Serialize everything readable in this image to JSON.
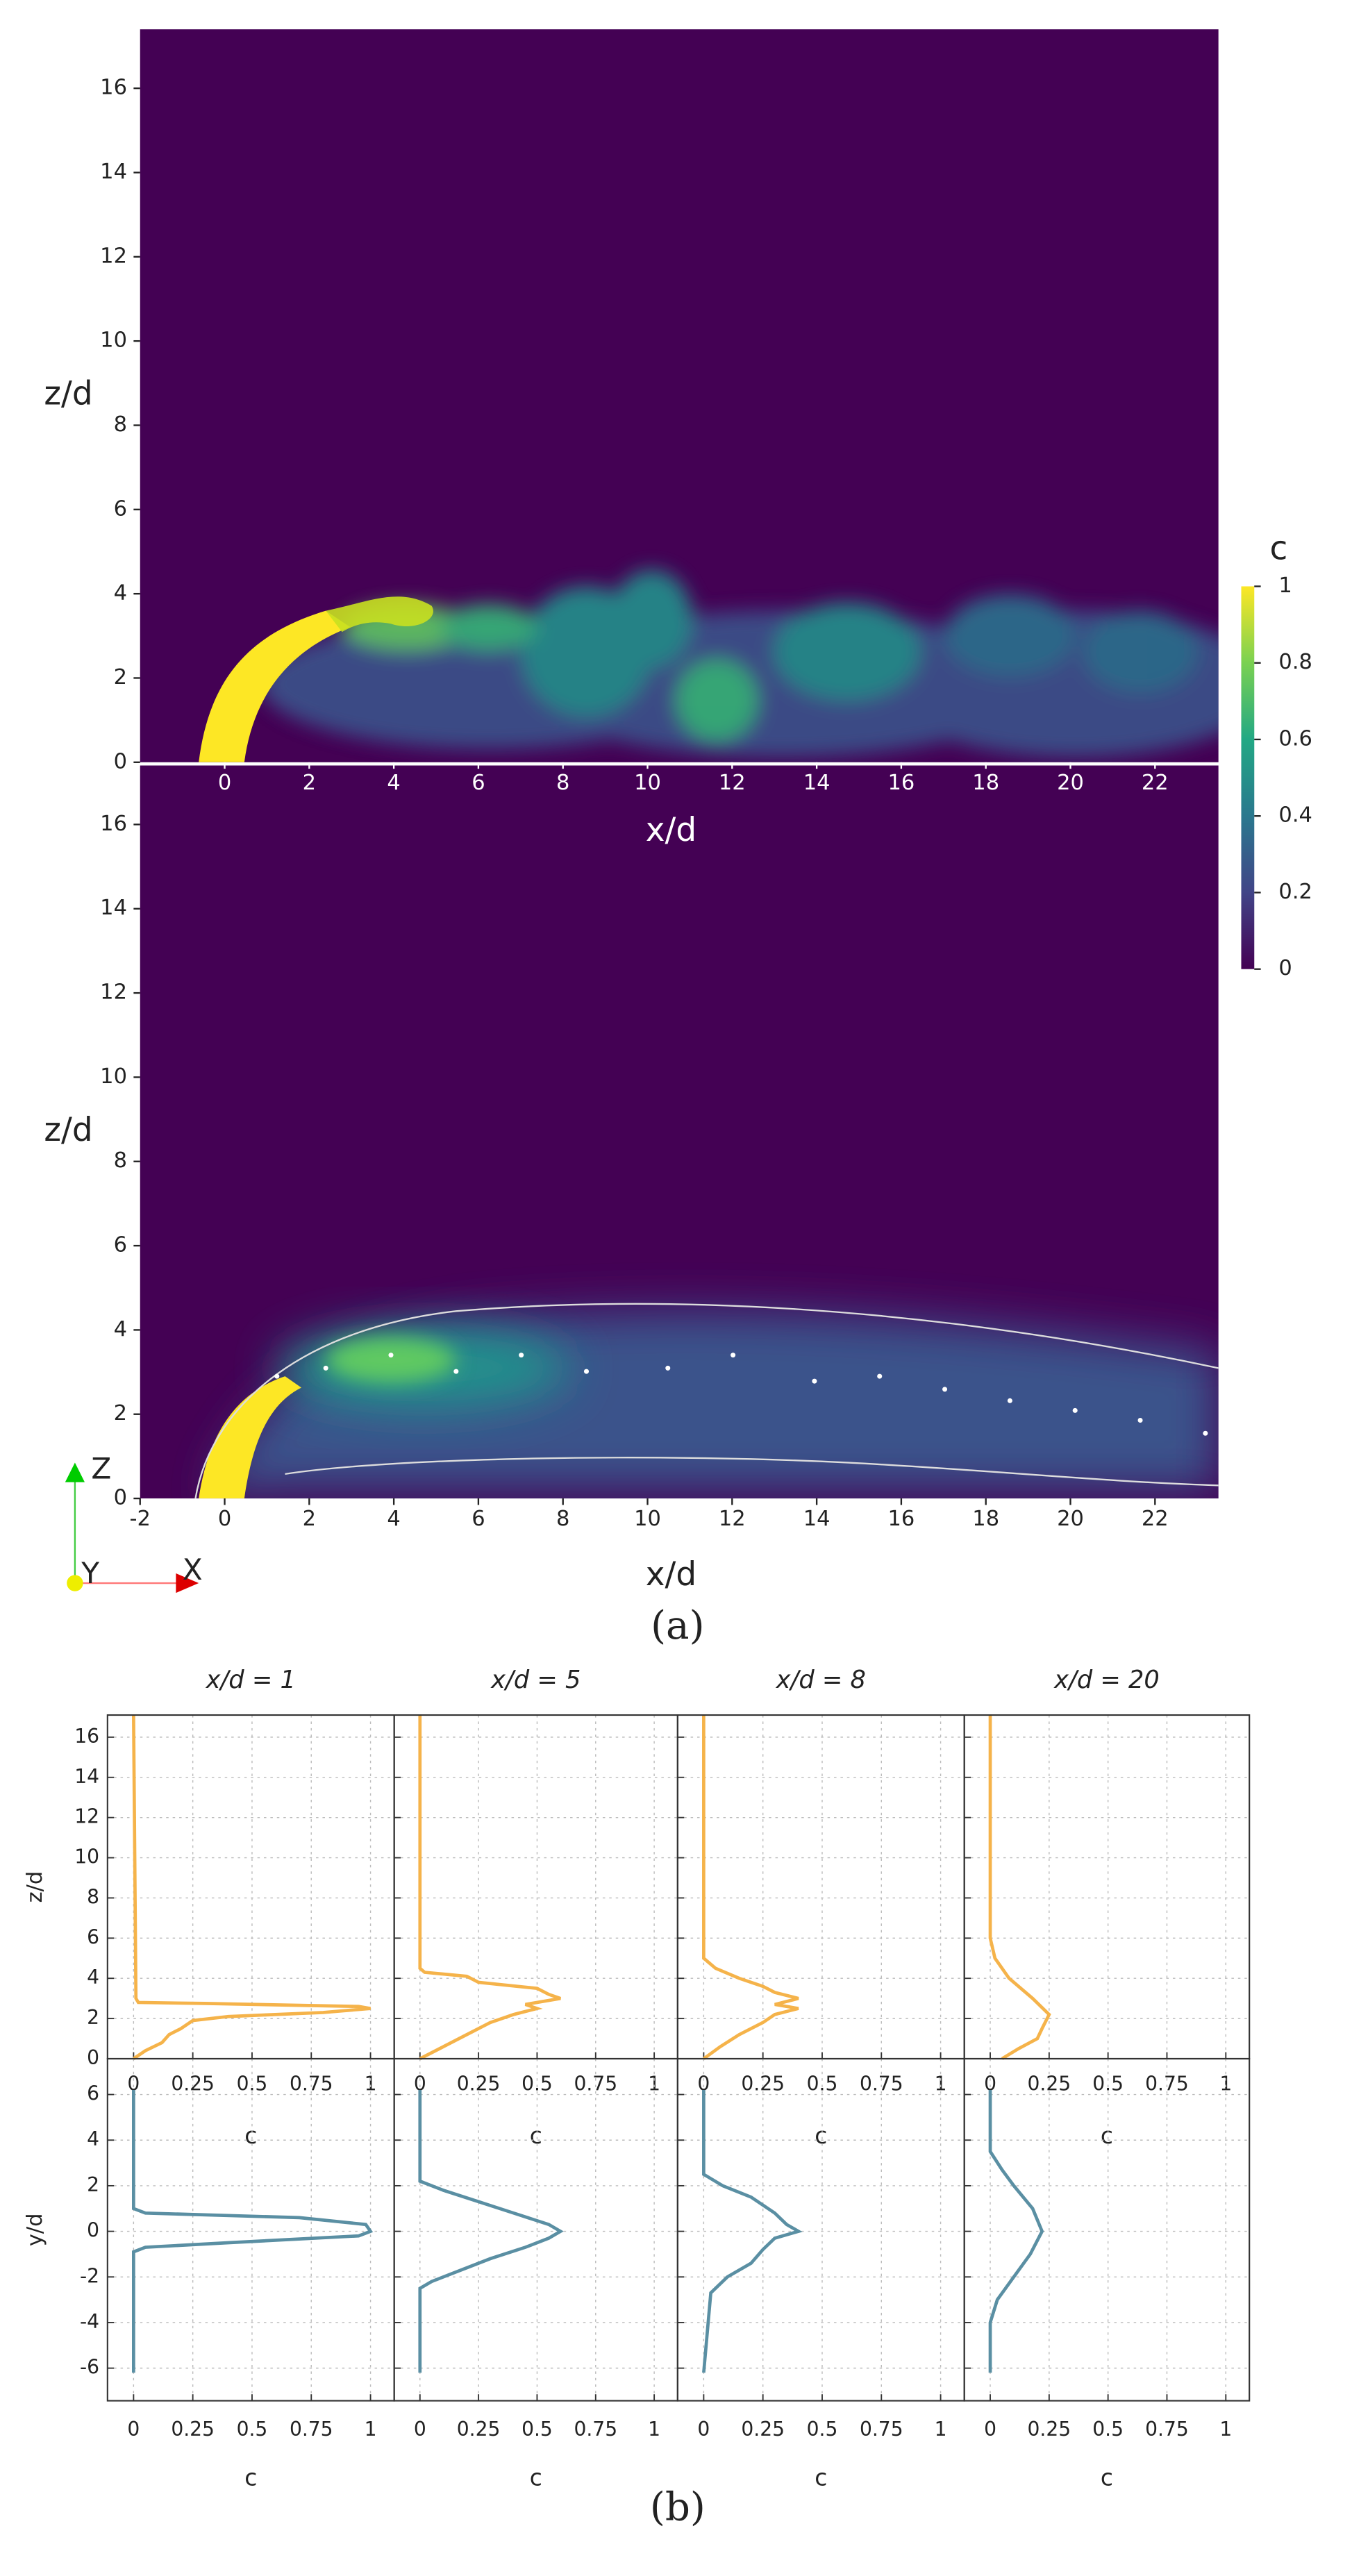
{
  "chart_data": [
    {
      "type": "contour",
      "xlabel": "x/d",
      "ylabel": "z/d",
      "xlim": [
        -2,
        23.5
      ],
      "ylim": [
        0,
        17.4
      ],
      "xticks": [
        0,
        2,
        4,
        6,
        8,
        10,
        12,
        14,
        16,
        18,
        20,
        22
      ],
      "yticks": [
        0,
        2,
        4,
        6,
        8,
        10,
        12,
        14,
        16
      ],
      "colorbar": {
        "title": "c",
        "lim": [
          0,
          1
        ],
        "ticks": [
          0,
          0.2,
          0.4,
          0.6,
          0.8,
          1
        ]
      }
    },
    {
      "type": "contour",
      "xlabel": "x/d",
      "ylabel": "z/d",
      "xlim": [
        -2,
        23.5
      ],
      "ylim": [
        0,
        17.4
      ],
      "xticks": [
        -2,
        0,
        2,
        4,
        6,
        8,
        10,
        12,
        14,
        16,
        18,
        20,
        22
      ],
      "yticks": [
        0,
        2,
        4,
        6,
        8,
        10,
        12,
        14,
        16
      ]
    },
    {
      "type": "profile",
      "title": "x/d = 1",
      "xlabel": "c",
      "ylabel": "z/d",
      "color": "#f5b34a",
      "xlim": [
        -0.11,
        1.1
      ],
      "ylim": [
        0,
        17.1
      ],
      "xticks": [
        0,
        0.25,
        0.5,
        0.75,
        1
      ],
      "yticks": [
        0,
        2,
        4,
        6,
        8,
        10,
        12,
        14,
        16
      ],
      "positions": [
        17.1,
        3,
        2.8,
        2.75,
        2.6,
        2.5,
        2.3,
        2.1,
        1.9,
        1.5,
        1.2,
        0.8,
        0.4,
        0
      ],
      "values": [
        0,
        0.01,
        0.02,
        0.3,
        0.95,
        1.0,
        0.8,
        0.4,
        0.25,
        0.2,
        0.15,
        0.12,
        0.05,
        0
      ]
    },
    {
      "type": "profile",
      "title": "x/d = 5",
      "xlabel": "c",
      "color": "#f5b34a",
      "xlim": [
        -0.11,
        1.1
      ],
      "ylim": [
        0,
        17.1
      ],
      "xticks": [
        0,
        0.25,
        0.5,
        0.75,
        1
      ],
      "positions": [
        17.1,
        4.5,
        4.3,
        4.1,
        3.8,
        3.5,
        3.2,
        3.0,
        2.7,
        2.5,
        2.2,
        1.8,
        1.2,
        0.6,
        0
      ],
      "values": [
        0,
        0,
        0.02,
        0.2,
        0.25,
        0.5,
        0.55,
        0.6,
        0.45,
        0.5,
        0.4,
        0.3,
        0.2,
        0.1,
        0
      ]
    },
    {
      "type": "profile",
      "title": "x/d = 8",
      "xlabel": "c",
      "color": "#f5b34a",
      "xlim": [
        -0.11,
        1.1
      ],
      "ylim": [
        0,
        17.1
      ],
      "xticks": [
        0,
        0.25,
        0.5,
        0.75,
        1
      ],
      "positions": [
        17.1,
        5,
        4.5,
        4,
        3.6,
        3.3,
        3.0,
        2.7,
        2.5,
        2.2,
        1.8,
        1.2,
        0.6,
        0
      ],
      "values": [
        0,
        0,
        0.05,
        0.15,
        0.25,
        0.3,
        0.4,
        0.3,
        0.4,
        0.3,
        0.25,
        0.15,
        0.07,
        0
      ]
    },
    {
      "type": "profile",
      "title": "x/d = 20",
      "xlabel": "c",
      "color": "#f5b34a",
      "xlim": [
        -0.11,
        1.1
      ],
      "ylim": [
        0,
        17.1
      ],
      "xticks": [
        0,
        0.25,
        0.5,
        0.75,
        1
      ],
      "positions": [
        17.1,
        6,
        5,
        4,
        3,
        2.2,
        1.5,
        1,
        0.5,
        0
      ],
      "values": [
        0,
        0,
        0.02,
        0.08,
        0.18,
        0.25,
        0.22,
        0.2,
        0.12,
        0.05
      ]
    },
    {
      "type": "profile",
      "xlabel": "c",
      "ylabel": "y/d",
      "color": "#5a8fa3",
      "xlim": [
        -0.11,
        1.1
      ],
      "ylim": [
        -7.43,
        7.57
      ],
      "xticks": [
        0,
        0.25,
        0.5,
        0.75,
        1
      ],
      "yticks": [
        -6,
        -4,
        -2,
        0,
        2,
        4,
        6
      ],
      "positions": [
        6.2,
        1,
        0.8,
        0.6,
        0.3,
        0,
        -0.2,
        -0.5,
        -0.7,
        -0.9,
        -6.2
      ],
      "values": [
        0,
        0,
        0.05,
        0.7,
        0.98,
        1.0,
        0.95,
        0.4,
        0.05,
        0,
        0
      ]
    },
    {
      "type": "profile",
      "xlabel": "c",
      "color": "#5a8fa3",
      "xlim": [
        -0.11,
        1.1
      ],
      "ylim": [
        -7.43,
        7.57
      ],
      "xticks": [
        0,
        0.25,
        0.5,
        0.75,
        1
      ],
      "positions": [
        6.2,
        2.2,
        1.8,
        1.3,
        0.8,
        0.3,
        0,
        -0.3,
        -0.7,
        -1.2,
        -1.8,
        -2.2,
        -2.5,
        -6.2
      ],
      "values": [
        0,
        0,
        0.1,
        0.25,
        0.4,
        0.55,
        0.6,
        0.55,
        0.45,
        0.3,
        0.15,
        0.05,
        0,
        0
      ]
    },
    {
      "type": "profile",
      "xlabel": "c",
      "color": "#5a8fa3",
      "xlim": [
        -0.11,
        1.1
      ],
      "ylim": [
        -7.43,
        7.57
      ],
      "xticks": [
        0,
        0.25,
        0.5,
        0.75,
        1
      ],
      "positions": [
        6.2,
        2.5,
        2,
        1.5,
        0.8,
        0.3,
        0,
        -0.3,
        -0.8,
        -1.4,
        -2,
        -2.7,
        -6.2
      ],
      "values": [
        0,
        0,
        0.08,
        0.2,
        0.3,
        0.35,
        0.4,
        0.3,
        0.25,
        0.2,
        0.1,
        0.03,
        0
      ]
    },
    {
      "type": "profile",
      "xlabel": "c",
      "color": "#5a8fa3",
      "xlim": [
        -0.11,
        1.1
      ],
      "ylim": [
        -7.43,
        7.57
      ],
      "xticks": [
        0,
        0.25,
        0.5,
        0.75,
        1
      ],
      "positions": [
        6.2,
        3.5,
        2.7,
        2,
        1,
        0,
        -1,
        -2,
        -3,
        -4,
        -6.2
      ],
      "values": [
        0,
        0,
        0.05,
        0.1,
        0.18,
        0.22,
        0.17,
        0.1,
        0.03,
        0,
        0
      ]
    }
  ],
  "captions": [
    "(a)",
    "(b)"
  ],
  "orientation_axes": {
    "z": "Z",
    "y": "Y",
    "x": "X"
  }
}
